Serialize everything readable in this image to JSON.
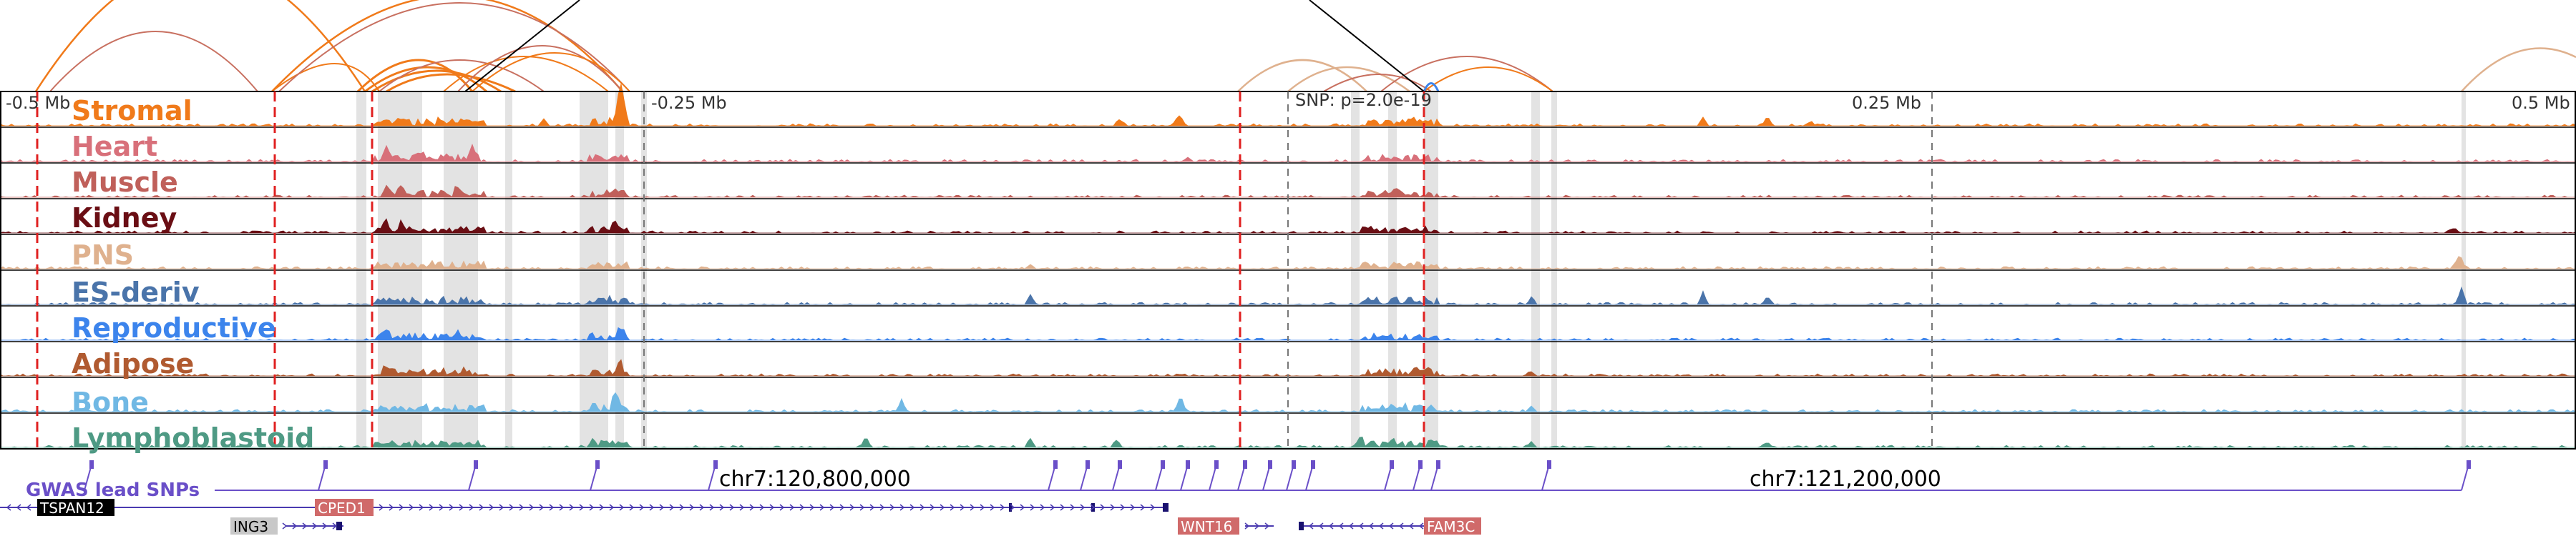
{
  "window": {
    "axis_labels": [
      "-0.5 Mb",
      "-0.25 Mb",
      "SNP: p=2.0e-19",
      "0.25 Mb",
      "0.5 Mb"
    ],
    "coordinates": [
      "chr7:120,800,000",
      "chr7:121,200,000"
    ]
  },
  "tracks": [
    {
      "label": "Stromal",
      "color": "#f07a1a"
    },
    {
      "label": "Heart",
      "color": "#d8707a"
    },
    {
      "label": "Muscle",
      "color": "#c0605a"
    },
    {
      "label": "Kidney",
      "color": "#6a0e14"
    },
    {
      "label": "PNS",
      "color": "#dfb18e"
    },
    {
      "label": "ES-deriv",
      "color": "#4a74aa"
    },
    {
      "label": "Reproductive",
      "color": "#3c84ec"
    },
    {
      "label": "Adipose",
      "color": "#b05a30"
    },
    {
      "label": "Bone",
      "color": "#70b8e4"
    },
    {
      "label": "Lymphoblastoid",
      "color": "#4e9a84"
    }
  ],
  "gwas": {
    "label": "GWAS lead SNPs",
    "color": "#6a4fc8"
  },
  "genes": [
    {
      "name": "TSPAN12",
      "color": "#000000",
      "text_color": "#ffffff"
    },
    {
      "name": "CPED1",
      "color": "#d06a6a",
      "text_color": "#ffffff"
    },
    {
      "name": "ING3",
      "color": "#c8c8c8",
      "text_color": "#000000"
    },
    {
      "name": "WNT16",
      "color": "#d06a6a",
      "text_color": "#ffffff"
    },
    {
      "name": "FAM3C",
      "color": "#d06a6a",
      "text_color": "#ffffff"
    }
  ],
  "colors": {
    "loop": "#f07a1a",
    "loop_alt": "#c87060",
    "highlight_line": "#e02020",
    "gene_strand": "#4a3ab0",
    "gwas_marker": "#6a4fc8"
  }
}
